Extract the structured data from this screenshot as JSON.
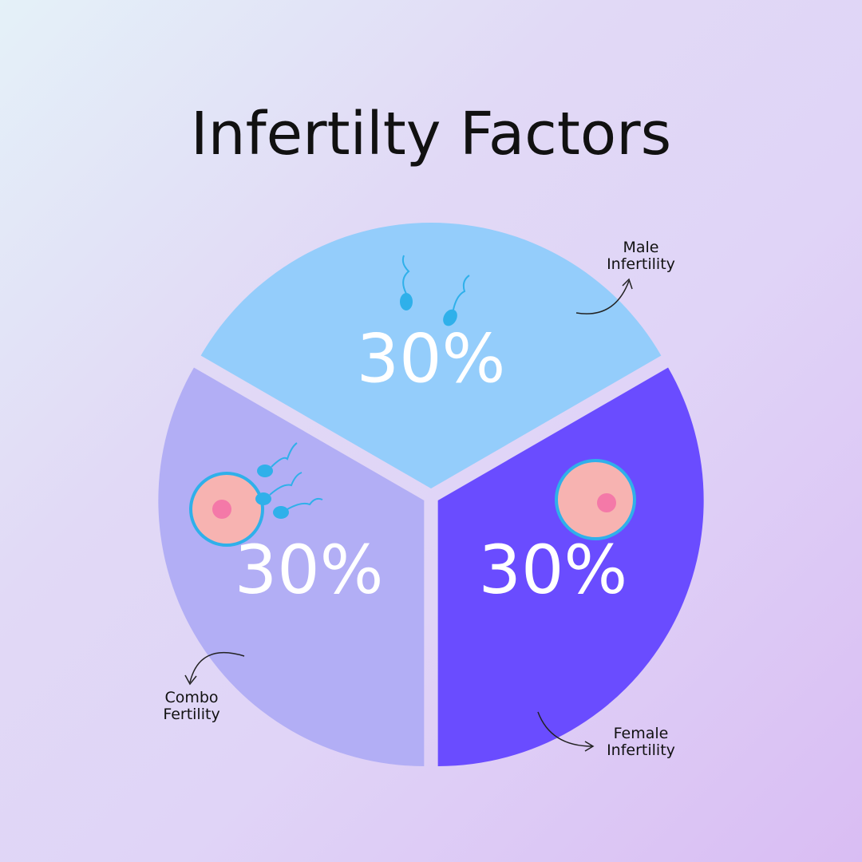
{
  "chart_data": {
    "type": "pie",
    "title": "Infertilty Factors",
    "categories": [
      "Male Infertility",
      "Female Infertility",
      "Combo Fertility"
    ],
    "values": [
      30,
      30,
      30
    ],
    "value_labels": [
      "30%",
      "30%",
      "30%"
    ],
    "colors": [
      "#94cdfb",
      "#6a4cff",
      "#b2aef5"
    ]
  }
}
